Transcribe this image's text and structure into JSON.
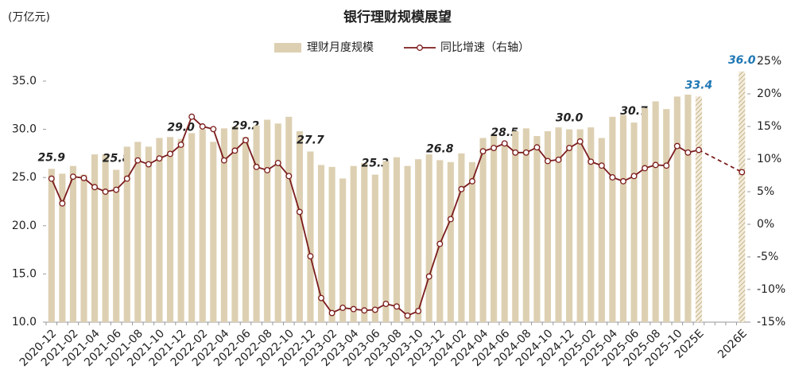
{
  "chart_data": {
    "type": "bar-line",
    "title": "银行理财规模展望",
    "y_unit": "(万亿元)",
    "categories": [
      "2020-12",
      null,
      "2021-02",
      null,
      "2021-04",
      null,
      "2021-06",
      null,
      "2021-08",
      null,
      "2021-10",
      null,
      "2021-12",
      null,
      "2022-02",
      null,
      "2022-04",
      null,
      "2022-06",
      null,
      "2022-08",
      null,
      "2022-10",
      null,
      "2022-12",
      null,
      "2023-02",
      null,
      "2023-04",
      null,
      "2023-06",
      null,
      "2023-08",
      null,
      "2023-10",
      null,
      "2023-12",
      null,
      "2024-02",
      null,
      "2024-04",
      null,
      "2024-06",
      null,
      "2024-08",
      null,
      "2024-10",
      null,
      "2024-12",
      null,
      "2025-02",
      null,
      "2025-04",
      null,
      "2025-06",
      null,
      "2025-08",
      null,
      "2025-10",
      null,
      "2025E",
      null,
      null,
      null,
      "2026E"
    ],
    "series": [
      {
        "name": "理财月度规模",
        "color": "#ddd0b2",
        "hatch_color": "#cbb98f",
        "values": [
          25.9,
          25.4,
          26.2,
          25.3,
          27.4,
          27.4,
          25.8,
          28.2,
          28.7,
          28.2,
          29.1,
          29.2,
          29.0,
          29.6,
          30.0,
          28.7,
          30.1,
          30.3,
          29.2,
          30.4,
          31.0,
          30.6,
          31.3,
          29.8,
          27.7,
          26.3,
          26.1,
          24.9,
          26.2,
          26.5,
          25.3,
          26.7,
          27.1,
          26.2,
          26.9,
          27.4,
          26.8,
          26.6,
          27.5,
          26.6,
          29.1,
          29.5,
          28.5,
          29.8,
          30.1,
          29.3,
          29.8,
          30.2,
          30.0,
          30.0,
          30.2,
          29.1,
          31.3,
          31.5,
          30.7,
          32.2,
          32.9,
          32.1,
          33.4,
          33.6,
          33.4,
          null,
          null,
          null,
          36.0
        ],
        "value_labels": [
          "25.9",
          null,
          null,
          null,
          null,
          null,
          "25.8",
          null,
          null,
          null,
          null,
          null,
          "29.0",
          null,
          null,
          null,
          null,
          null,
          "29.2",
          null,
          null,
          null,
          null,
          null,
          "27.7",
          null,
          null,
          null,
          null,
          null,
          "25.3",
          null,
          null,
          null,
          null,
          null,
          "26.8",
          null,
          null,
          null,
          null,
          null,
          "28.5",
          null,
          null,
          null,
          null,
          null,
          "30.0",
          null,
          null,
          null,
          null,
          null,
          "30.7",
          null,
          null,
          null,
          null,
          null,
          "33.4",
          null,
          null,
          null,
          "36.0"
        ],
        "estimate_label_color": "#1f78b4"
      },
      {
        "name": "同比增速（右轴）",
        "color": "#7b1c1c",
        "axis": "y2",
        "values": [
          7.0,
          3.2,
          7.3,
          7.1,
          5.7,
          5.0,
          5.3,
          7.0,
          9.8,
          9.2,
          10.1,
          10.8,
          12.2,
          16.5,
          15.0,
          14.6,
          9.8,
          11.3,
          12.9,
          8.8,
          8.3,
          9.4,
          7.4,
          1.9,
          -4.9,
          -11.3,
          -13.6,
          -12.8,
          -13.0,
          -13.2,
          -13.1,
          -12.2,
          -12.6,
          -14.0,
          -13.3,
          -8.0,
          -3.0,
          0.8,
          5.4,
          6.6,
          11.2,
          11.7,
          12.4,
          11.0,
          11.0,
          11.8,
          9.7,
          9.9,
          11.7,
          12.7,
          9.6,
          9.0,
          7.2,
          6.6,
          7.4,
          8.6,
          9.1,
          9.0,
          12.0,
          11.0,
          11.4,
          null,
          null,
          null,
          8.0
        ]
      }
    ],
    "ylim": [
      10,
      37.06
    ],
    "yticks": [
      {
        "value": 10,
        "label": "10.0"
      },
      {
        "value": 15,
        "label": "15.0"
      },
      {
        "value": 20,
        "label": "20.0"
      },
      {
        "value": 25,
        "label": "25.0"
      },
      {
        "value": 30,
        "label": "30.0"
      },
      {
        "value": 35,
        "label": "35.0"
      }
    ],
    "y2lim": [
      -15,
      25
    ],
    "y2ticks": [
      {
        "value": -15,
        "label": "-15%"
      },
      {
        "value": -10,
        "label": "-10%"
      },
      {
        "value": -5,
        "label": "-5%"
      },
      {
        "value": 0,
        "label": "0%"
      },
      {
        "value": 5,
        "label": "5%"
      },
      {
        "value": 10,
        "label": "10%"
      },
      {
        "value": 15,
        "label": "15%"
      },
      {
        "value": 20,
        "label": "20%"
      },
      {
        "value": 25,
        "label": "25%"
      }
    ],
    "legend": "top"
  }
}
